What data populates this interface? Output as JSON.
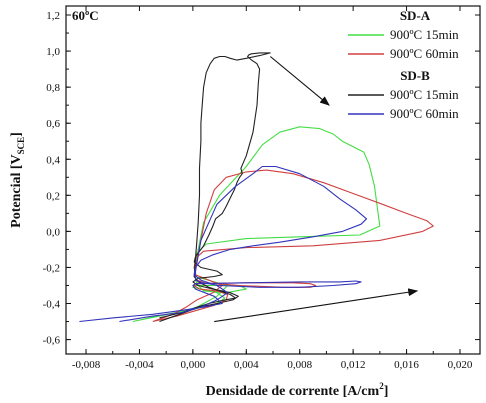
{
  "chart_data": {
    "type": "line",
    "panel_label": "60ºC",
    "xlabel_main": "Densidade de corrente [A/cm",
    "xlabel_sup": "2",
    "xlabel_end": "]",
    "ylabel_main": "Potencial  [V",
    "ylabel_sub": "SCE",
    "ylabel_end": "]",
    "xlim": [
      -0.0095,
      0.0215
    ],
    "ylim": [
      -0.68,
      1.25
    ],
    "x_ticks": [
      -0.008,
      -0.004,
      0.0,
      0.004,
      0.008,
      0.012,
      0.016,
      0.02
    ],
    "x_tick_labels": [
      "-0,008",
      "-0,004",
      "0,000",
      "0,004",
      "0,008",
      "0,012",
      "0,016",
      "0,020"
    ],
    "y_ticks": [
      -0.6,
      -0.4,
      -0.2,
      0.0,
      0.2,
      0.4,
      0.6,
      0.8,
      1.0,
      1.2
    ],
    "y_tick_labels": [
      "-0,6",
      "-0,4",
      "-0,2",
      "0,0",
      "0,2",
      "0,4",
      "0,6",
      "0,8",
      "1,0",
      "1,2"
    ],
    "legend_position": "top-right",
    "legend_groups": [
      {
        "title": "SD-A",
        "entries": [
          0,
          1
        ]
      },
      {
        "title": "SD-B",
        "entries": [
          2,
          3
        ]
      }
    ],
    "series": [
      {
        "name": "900ºC 15min",
        "color": "#44dd44",
        "x": [
          -0.0045,
          -0.002,
          0.0002,
          0.0018,
          0.0024,
          0.0018,
          0.0,
          0.0002,
          0.0035,
          0.004,
          0.0025,
          0.0008,
          0.0004,
          0.0002,
          0.0002,
          0.0004,
          0.0008,
          0.002,
          0.004,
          0.0052,
          0.0065,
          0.008,
          0.0095,
          0.0105,
          0.0112,
          0.0128,
          0.0132,
          0.0136,
          0.014,
          0.0125,
          0.008,
          0.004,
          0.001,
          0.0003,
          0.0001,
          0.0002,
          0.0016,
          0.0026,
          0.0018,
          0.0008,
          0.0003,
          -0.0006,
          -0.0025,
          -0.0045
        ],
        "y": [
          -0.5,
          -0.46,
          -0.43,
          -0.4,
          -0.37,
          -0.34,
          -0.31,
          -0.3,
          -0.3,
          -0.32,
          -0.34,
          -0.33,
          -0.3,
          -0.27,
          -0.2,
          -0.1,
          0.05,
          0.2,
          0.36,
          0.48,
          0.55,
          0.58,
          0.57,
          0.54,
          0.5,
          0.44,
          0.37,
          0.25,
          0.03,
          -0.02,
          -0.03,
          -0.04,
          -0.07,
          -0.12,
          -0.2,
          -0.25,
          -0.28,
          -0.3,
          -0.36,
          -0.4,
          -0.42,
          -0.44,
          -0.47,
          -0.5
        ]
      },
      {
        "name": "900ºC 60min",
        "color": "#d04040",
        "x": [
          -0.003,
          -0.0012,
          0.0002,
          0.0016,
          0.0025,
          0.0026,
          0.0018,
          0.0005,
          0.0001,
          0.0002,
          0.004,
          0.0075,
          0.0088,
          0.0092,
          0.0088,
          0.0068,
          0.0035,
          0.0009,
          0.0003,
          0.0001,
          0.0002,
          0.0006,
          0.001,
          0.0016,
          0.0025,
          0.004,
          0.0055,
          0.0075,
          0.0098,
          0.012,
          0.0142,
          0.016,
          0.0175,
          0.018,
          0.0172,
          0.014,
          0.009,
          0.004,
          0.0008,
          0.0002,
          0.0001,
          0.0002,
          0.0012,
          0.0022,
          0.0015,
          0.0003,
          -0.0005,
          -0.0015,
          -0.003
        ],
        "y": [
          -0.5,
          -0.47,
          -0.44,
          -0.41,
          -0.38,
          -0.35,
          -0.33,
          -0.32,
          -0.3,
          -0.29,
          -0.285,
          -0.285,
          -0.29,
          -0.3,
          -0.31,
          -0.31,
          -0.3,
          -0.285,
          -0.27,
          -0.25,
          -0.2,
          -0.05,
          0.1,
          0.23,
          0.3,
          0.33,
          0.34,
          0.32,
          0.27,
          0.21,
          0.15,
          0.1,
          0.06,
          0.03,
          0.0,
          -0.05,
          -0.08,
          -0.09,
          -0.11,
          -0.15,
          -0.2,
          -0.24,
          -0.27,
          -0.3,
          -0.34,
          -0.38,
          -0.42,
          -0.46,
          -0.5
        ]
      },
      {
        "name": "900ºC 15min",
        "color": "#222222",
        "x": [
          -0.0025,
          -0.001,
          0.0005,
          0.0018,
          0.003,
          0.0034,
          0.0028,
          0.0015,
          0.0004,
          0.0,
          0.0004,
          0.0016,
          0.0022,
          0.0018,
          0.0006,
          0.0001,
          0.0002,
          0.0008,
          0.0012,
          0.0015,
          0.0017,
          0.0022,
          0.0025,
          0.0027,
          0.0029,
          0.0031,
          0.0033,
          0.0035,
          0.0037,
          0.0036,
          0.004,
          0.0045,
          0.0048,
          0.0049,
          0.005,
          0.0048,
          0.0044,
          0.0041,
          0.0042,
          0.0044,
          0.005,
          0.0058,
          0.005,
          0.004,
          0.0033,
          0.0028,
          0.0024,
          0.002,
          0.0016,
          0.0013,
          0.001,
          0.0008,
          0.0007,
          0.0006,
          0.0006,
          0.0005,
          0.0005,
          0.0004,
          0.0003,
          0.0002,
          0.0001,
          0.0004,
          0.0012,
          0.002,
          0.0028,
          0.0032,
          0.0024,
          0.0012,
          0.0003,
          -0.0008,
          -0.0025
        ],
        "y": [
          -0.5,
          -0.46,
          -0.42,
          -0.4,
          -0.38,
          -0.36,
          -0.34,
          -0.32,
          -0.3,
          -0.28,
          -0.26,
          -0.25,
          -0.24,
          -0.22,
          -0.2,
          -0.17,
          -0.14,
          -0.08,
          -0.02,
          0.03,
          0.07,
          0.1,
          0.14,
          0.17,
          0.2,
          0.23,
          0.27,
          0.3,
          0.32,
          0.35,
          0.42,
          0.55,
          0.7,
          0.82,
          0.9,
          0.93,
          0.95,
          0.97,
          0.98,
          0.985,
          0.99,
          0.99,
          0.975,
          0.96,
          0.95,
          0.96,
          0.97,
          0.97,
          0.96,
          0.93,
          0.88,
          0.8,
          0.7,
          0.6,
          0.5,
          0.35,
          0.2,
          0.05,
          -0.05,
          -0.15,
          -0.25,
          -0.28,
          -0.31,
          -0.33,
          -0.35,
          -0.37,
          -0.38,
          -0.4,
          -0.42,
          -0.45,
          -0.48
        ]
      },
      {
        "name": "900ºC 60min",
        "color": "#3333bb",
        "x": [
          -0.0085,
          -0.006,
          -0.003,
          -0.001,
          0.0008,
          0.0022,
          0.0016,
          0.0002,
          0.0,
          0.0002,
          0.004,
          0.008,
          0.011,
          0.0122,
          0.0126,
          0.0122,
          0.0105,
          0.008,
          0.005,
          0.002,
          0.0007,
          0.0002,
          0.0002,
          0.0006,
          0.0018,
          0.0032,
          0.0045,
          0.0052,
          0.0062,
          0.008,
          0.0098,
          0.011,
          0.0122,
          0.013,
          0.0126,
          0.0112,
          0.009,
          0.0065,
          0.0045,
          0.0028,
          0.0015,
          0.0006,
          0.0002,
          0.0001,
          0.0006,
          0.0018,
          0.0026,
          0.0018,
          0.0006,
          -0.0008,
          -0.003,
          -0.0055
        ],
        "y": [
          -0.5,
          -0.48,
          -0.46,
          -0.44,
          -0.42,
          -0.4,
          -0.36,
          -0.32,
          -0.3,
          -0.29,
          -0.285,
          -0.28,
          -0.28,
          -0.275,
          -0.28,
          -0.29,
          -0.3,
          -0.31,
          -0.31,
          -0.3,
          -0.285,
          -0.27,
          -0.22,
          -0.05,
          0.15,
          0.25,
          0.32,
          0.36,
          0.36,
          0.32,
          0.25,
          0.18,
          0.12,
          0.07,
          0.04,
          0.0,
          -0.03,
          -0.06,
          -0.08,
          -0.1,
          -0.13,
          -0.16,
          -0.2,
          -0.24,
          -0.27,
          -0.3,
          -0.34,
          -0.38,
          -0.42,
          -0.45,
          -0.47,
          -0.5
        ]
      }
    ],
    "annotations": [
      {
        "type": "arrow",
        "x1": 0.0058,
        "y1": 0.97,
        "x2": 0.0102,
        "y2": 0.7
      },
      {
        "type": "arrow",
        "x1": 0.0016,
        "y1": -0.5,
        "x2": 0.0168,
        "y2": -0.33
      }
    ]
  }
}
